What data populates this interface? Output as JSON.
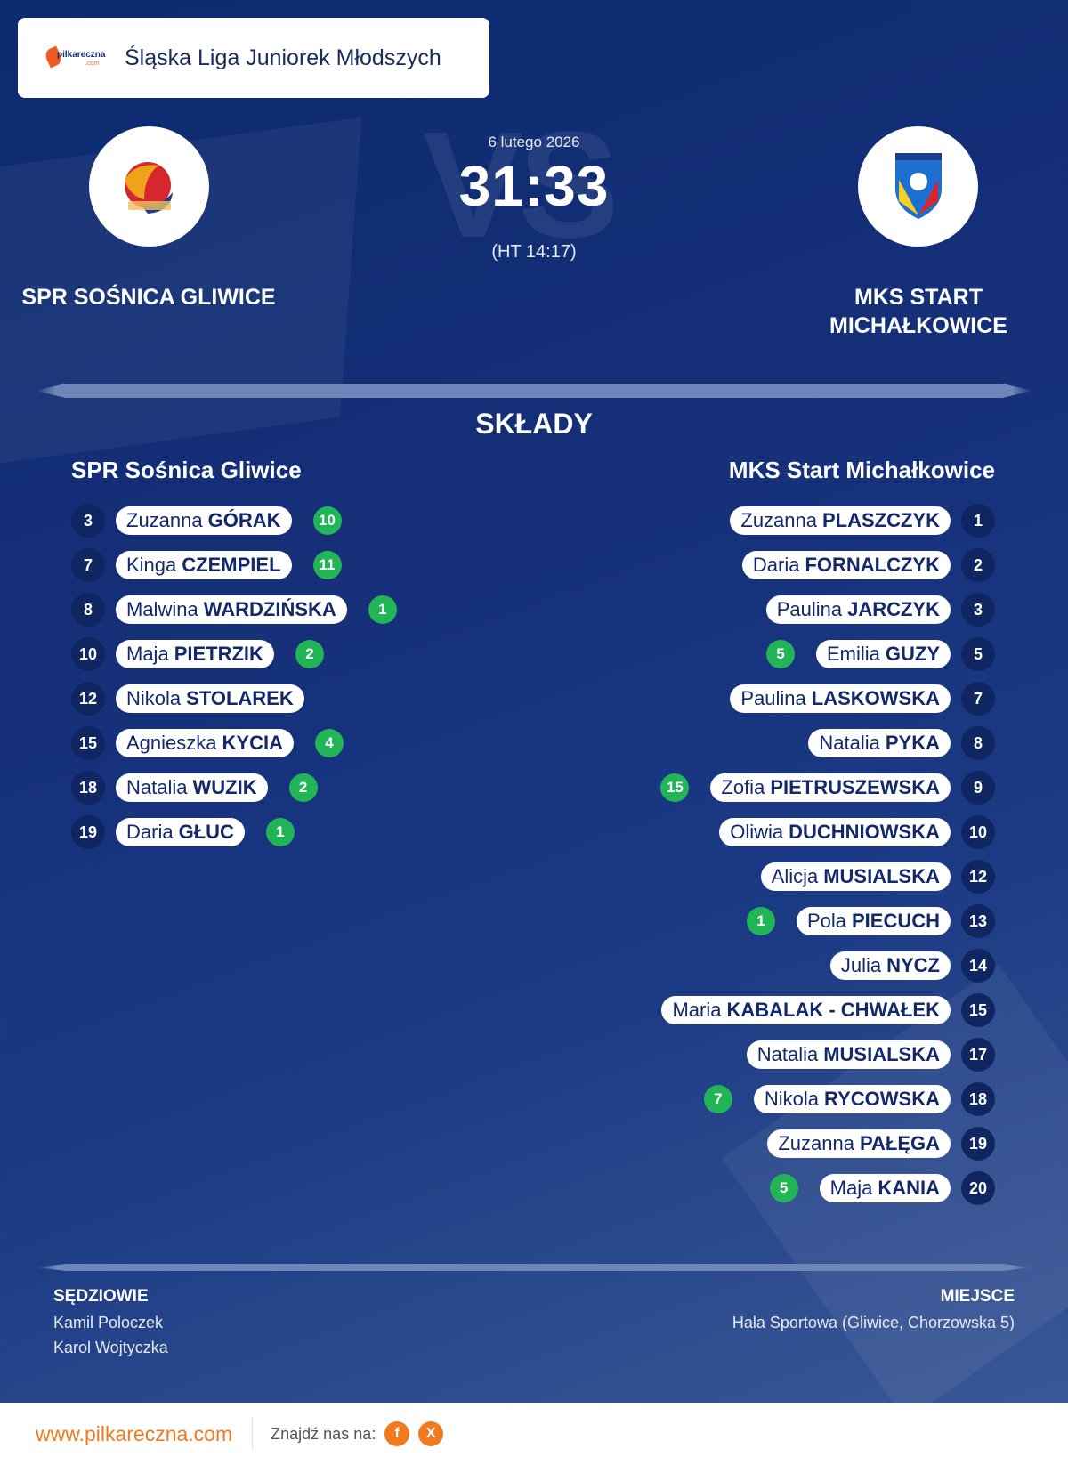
{
  "header": {
    "logo_text": "pilkareczna",
    "logo_subtext": ".com",
    "league": "Śląska Liga Juniorek Młodszych"
  },
  "match": {
    "date": "6 lutego 2026",
    "score": "31:33",
    "halftime": "(HT 14:17)",
    "vs_watermark": "VS"
  },
  "home": {
    "name": "SPR SOŚNICA GLIWICE",
    "squad_title": "SPR Sośnica Gliwice",
    "crest_colors": [
      "#f0a21b",
      "#d6262e",
      "#1f3a8a"
    ],
    "players": [
      {
        "number": "3",
        "first": "Zuzanna",
        "last": "GÓRAK",
        "goals": "10"
      },
      {
        "number": "7",
        "first": "Kinga",
        "last": "CZEMPIEL",
        "goals": "11"
      },
      {
        "number": "8",
        "first": "Malwina",
        "last": "WARDZIŃSKA",
        "goals": "1"
      },
      {
        "number": "10",
        "first": "Maja",
        "last": "PIETRZIK",
        "goals": "2"
      },
      {
        "number": "12",
        "first": "Nikola",
        "last": "STOLAREK",
        "goals": ""
      },
      {
        "number": "15",
        "first": "Agnieszka",
        "last": "KYCIA",
        "goals": "4"
      },
      {
        "number": "18",
        "first": "Natalia",
        "last": "WUZIK",
        "goals": "2"
      },
      {
        "number": "19",
        "first": "Daria",
        "last": "GŁUC",
        "goals": "1"
      }
    ]
  },
  "away": {
    "name": "MKS START MICHAŁKOWICE",
    "squad_title": "MKS Start Michałkowice",
    "crest_colors": [
      "#f4d020",
      "#d6262e",
      "#1f6fd1"
    ],
    "players": [
      {
        "number": "1",
        "first": "Zuzanna",
        "last": "PLASZCZYK",
        "goals": ""
      },
      {
        "number": "2",
        "first": "Daria",
        "last": "FORNALCZYK",
        "goals": ""
      },
      {
        "number": "3",
        "first": "Paulina",
        "last": "JARCZYK",
        "goals": ""
      },
      {
        "number": "5",
        "first": "Emilia",
        "last": "GUZY",
        "goals": "5"
      },
      {
        "number": "7",
        "first": "Paulina",
        "last": "LASKOWSKA",
        "goals": ""
      },
      {
        "number": "8",
        "first": "Natalia",
        "last": "PYKA",
        "goals": ""
      },
      {
        "number": "9",
        "first": "Zofia",
        "last": "PIETRUSZEWSKA",
        "goals": "15"
      },
      {
        "number": "10",
        "first": "Oliwia",
        "last": "DUCHNIOWSKA",
        "goals": ""
      },
      {
        "number": "12",
        "first": "Alicja",
        "last": "MUSIALSKA",
        "goals": ""
      },
      {
        "number": "13",
        "first": "Pola",
        "last": "PIECUCH",
        "goals": "1"
      },
      {
        "number": "14",
        "first": "Julia",
        "last": "NYCZ",
        "goals": ""
      },
      {
        "number": "15",
        "first": "Maria",
        "last": "KABALAK - CHWAŁEK",
        "goals": ""
      },
      {
        "number": "17",
        "first": "Natalia",
        "last": "MUSIALSKA",
        "goals": ""
      },
      {
        "number": "18",
        "first": "Nikola",
        "last": "RYCOWSKA",
        "goals": "7"
      },
      {
        "number": "19",
        "first": "Zuzanna",
        "last": "PAŁĘGA",
        "goals": ""
      },
      {
        "number": "20",
        "first": "Maja",
        "last": "KANIA",
        "goals": "5"
      }
    ]
  },
  "squads_title": "SKŁADY",
  "referees": {
    "label": "SĘDZIOWIE",
    "names": [
      "Kamil Poloczek",
      "Karol Wojtyczka"
    ]
  },
  "venue": {
    "label": "MIEJSCE",
    "value": "Hala Sportowa (Gliwice, Chorzowska 5)"
  },
  "footer": {
    "url": "www.pilkareczna.com",
    "find_us": "Znajdź nas na:",
    "social": [
      {
        "icon": "facebook-icon",
        "glyph": "f"
      },
      {
        "icon": "x-icon",
        "glyph": "X"
      }
    ]
  },
  "colors": {
    "accent_orange": "#f07a1d",
    "goal_green": "#21b557",
    "navy": "#0f2660"
  }
}
